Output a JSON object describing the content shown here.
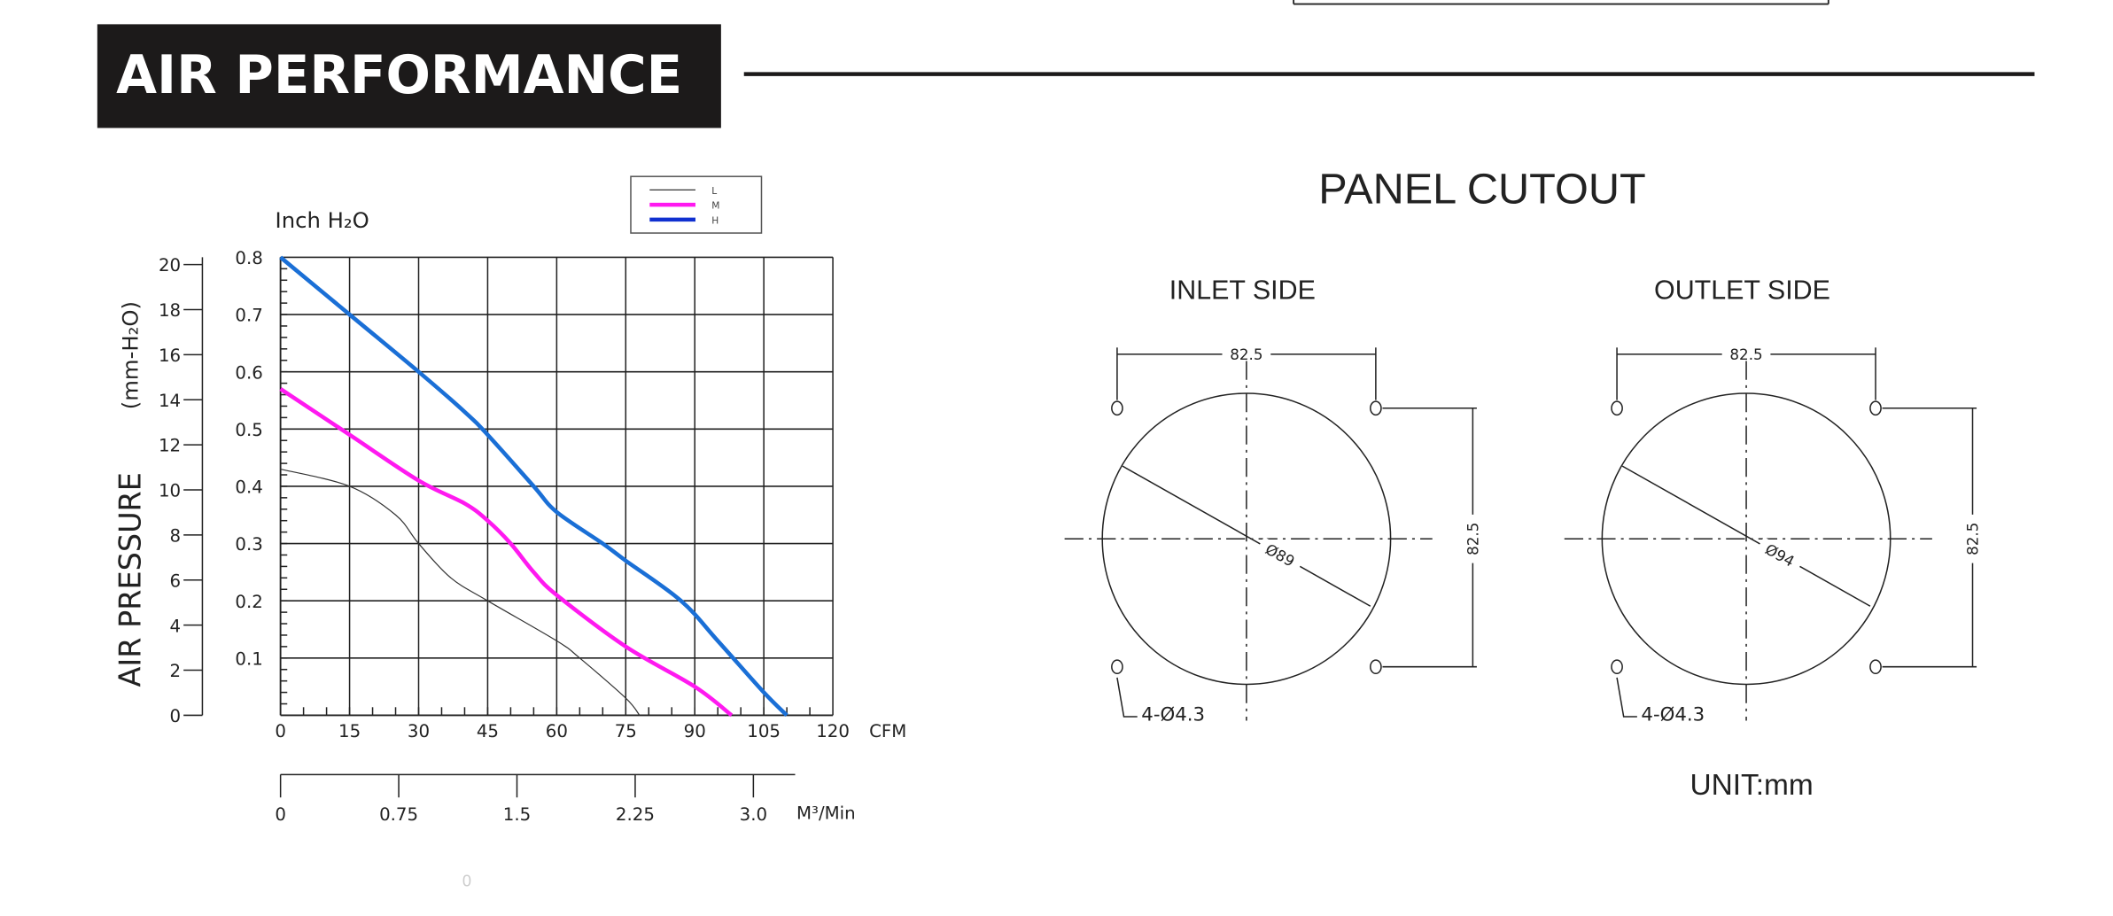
{
  "header": {
    "title": "AIR PERFORMANCE"
  },
  "chart_data": {
    "type": "line",
    "title": "",
    "ylabel": "AIR PRESSURE",
    "ylabel_unit": "(mm-H₂O)",
    "y2label": "Inch H₂O",
    "xlabel": "CFM",
    "x2label": "M³/Min",
    "xlim": [
      0,
      120
    ],
    "ylim": [
      0,
      0.8
    ],
    "grid": true,
    "legend_position": "top-right",
    "x_ticks": [
      "0",
      "15",
      "30",
      "45",
      "60",
      "75",
      "90",
      "105",
      "120"
    ],
    "y_ticks": [
      "0.1",
      "0.2",
      "0.3",
      "0.4",
      "0.5",
      "0.6",
      "0.7",
      "0.8"
    ],
    "mm_ticks": [
      "0",
      "2",
      "4",
      "6",
      "8",
      "10",
      "12",
      "14",
      "16",
      "18",
      "20"
    ],
    "m3_ticks": [
      "0",
      "0.75",
      "1.5",
      "2.25",
      "3.0"
    ],
    "series": [
      {
        "name": "L",
        "color": "#333333",
        "x": [
          0,
          15,
          25,
          30,
          37,
          45,
          60,
          65,
          75,
          78
        ],
        "y": [
          0.43,
          0.4,
          0.35,
          0.3,
          0.24,
          0.2,
          0.13,
          0.1,
          0.03,
          0
        ]
      },
      {
        "name": "M",
        "color": "#ff19f0",
        "x": [
          0,
          15,
          30,
          40,
          45,
          50,
          55,
          60,
          75,
          90,
          98
        ],
        "y": [
          0.57,
          0.49,
          0.41,
          0.37,
          0.34,
          0.3,
          0.25,
          0.21,
          0.12,
          0.05,
          0
        ]
      },
      {
        "name": "H",
        "color": "#1a6fd6",
        "x": [
          0,
          15,
          30,
          40,
          45,
          55,
          60,
          70,
          75,
          87,
          95,
          105,
          110
        ],
        "y": [
          0.8,
          0.7,
          0.6,
          0.53,
          0.49,
          0.4,
          0.355,
          0.3,
          0.27,
          0.2,
          0.13,
          0.04,
          0
        ]
      }
    ]
  },
  "panel": {
    "title": "PANEL CUTOUT",
    "unit": "UNIT:mm",
    "inlet": {
      "title": "INLET SIDE",
      "width_dim": "82.5",
      "height_dim": "82.5",
      "diameter": "Ø89",
      "holes": "4-Ø4.3"
    },
    "outlet": {
      "title": "OUTLET SIDE",
      "width_dim": "82.5",
      "height_dim": "82.5",
      "diameter": "Ø94",
      "holes": "4-Ø4.3"
    }
  },
  "footer": {
    "faint_text": "0"
  }
}
